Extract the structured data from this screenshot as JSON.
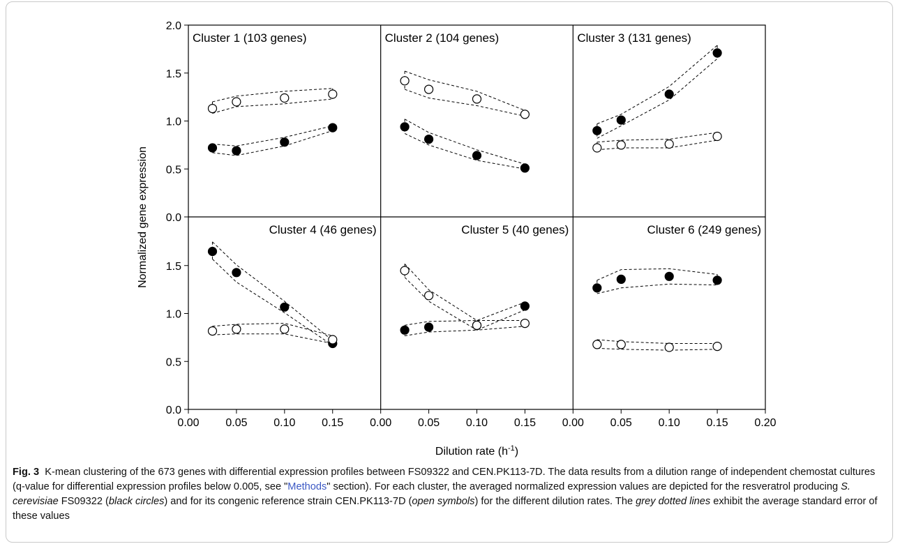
{
  "chart_data": {
    "type": "scatter",
    "ylabel": "Normalized gene expression",
    "xlabel_main": "Dilution rate (h",
    "xlabel_sup": "-1",
    "xlabel_end": ")",
    "xlim": [
      0,
      0.2
    ],
    "ylim": [
      0,
      2.0
    ],
    "x_ticks": [
      "0.00",
      "0.05",
      "0.10",
      "0.15",
      "0.20"
    ],
    "y_ticks_top": [
      "0.0",
      "0.5",
      "1.0",
      "1.5",
      "2.0"
    ],
    "y_ticks_bottom": [
      "0.0",
      "0.5",
      "1.0",
      "1.5"
    ],
    "x": [
      0.025,
      0.05,
      0.1,
      0.15
    ],
    "legend": [
      {
        "name": "FS09322",
        "marker": "black circles"
      },
      {
        "name": "CEN.PK113-7D",
        "marker": "open symbols"
      }
    ],
    "panels": [
      {
        "title": "Cluster 1 (103 genes)",
        "title_pos": "left",
        "series": [
          {
            "name": "FS09322",
            "filled": true,
            "values": [
              0.72,
              0.69,
              0.78,
              0.93
            ],
            "upper": [
              0.76,
              0.74,
              0.83,
              0.95
            ],
            "lower": [
              0.67,
              0.64,
              0.74,
              0.9
            ]
          },
          {
            "name": "CEN.PK113-7D",
            "filled": false,
            "values": [
              1.13,
              1.2,
              1.24,
              1.28
            ],
            "upper": [
              1.2,
              1.26,
              1.31,
              1.34
            ],
            "lower": [
              1.08,
              1.15,
              1.18,
              1.23
            ]
          }
        ]
      },
      {
        "title": "Cluster 2 (104 genes)",
        "title_pos": "left",
        "series": [
          {
            "name": "FS09322",
            "filled": true,
            "values": [
              0.94,
              0.81,
              0.64,
              0.51
            ],
            "upper": [
              1.02,
              0.88,
              0.7,
              0.55
            ],
            "lower": [
              0.87,
              0.75,
              0.59,
              0.5
            ]
          },
          {
            "name": "CEN.PK113-7D",
            "filled": false,
            "values": [
              1.42,
              1.33,
              1.23,
              1.07
            ],
            "upper": [
              1.52,
              1.43,
              1.31,
              1.11
            ],
            "lower": [
              1.33,
              1.24,
              1.16,
              1.05
            ]
          }
        ]
      },
      {
        "title": "Cluster 3 (131 genes)",
        "title_pos": "left",
        "series": [
          {
            "name": "FS09322",
            "filled": true,
            "values": [
              0.9,
              1.01,
              1.28,
              1.71
            ],
            "upper": [
              0.97,
              1.07,
              1.36,
              1.79
            ],
            "lower": [
              0.82,
              0.95,
              1.22,
              1.65
            ]
          },
          {
            "name": "CEN.PK113-7D",
            "filled": false,
            "values": [
              0.72,
              0.75,
              0.76,
              0.84
            ],
            "upper": [
              0.78,
              0.8,
              0.81,
              0.88
            ],
            "lower": [
              0.7,
              0.72,
              0.72,
              0.8
            ]
          }
        ]
      },
      {
        "title": "Cluster 4 (46 genes)",
        "title_pos": "right",
        "series": [
          {
            "name": "FS09322",
            "filled": true,
            "values": [
              1.64,
              1.42,
              1.06,
              0.68
            ],
            "upper": [
              1.74,
              1.5,
              1.12,
              0.71
            ],
            "lower": [
              1.56,
              1.32,
              1.0,
              0.66
            ]
          },
          {
            "name": "CEN.PK113-7D",
            "filled": false,
            "values": [
              0.81,
              0.83,
              0.83,
              0.72
            ],
            "upper": [
              0.86,
              0.88,
              0.89,
              0.76
            ],
            "lower": [
              0.77,
              0.78,
              0.78,
              0.68
            ]
          }
        ]
      },
      {
        "title": "Cluster 5 (40 genes)",
        "title_pos": "right",
        "series": [
          {
            "name": "FS09322",
            "filled": true,
            "values": [
              0.82,
              0.85,
              0.87,
              1.07
            ],
            "upper": [
              0.87,
              0.91,
              0.92,
              1.11
            ],
            "lower": [
              0.76,
              0.8,
              0.82,
              1.03
            ]
          },
          {
            "name": "CEN.PK113-7D",
            "filled": false,
            "values": [
              1.44,
              1.18,
              0.87,
              0.89
            ],
            "upper": [
              1.51,
              1.24,
              0.92,
              0.92
            ],
            "lower": [
              1.37,
              1.12,
              0.82,
              0.86
            ]
          }
        ]
      },
      {
        "title": "Cluster 6 (249 genes)",
        "title_pos": "right",
        "series": [
          {
            "name": "FS09322",
            "filled": true,
            "values": [
              1.26,
              1.35,
              1.38,
              1.34
            ],
            "upper": [
              1.34,
              1.45,
              1.46,
              1.4
            ],
            "lower": [
              1.2,
              1.26,
              1.3,
              1.29
            ]
          },
          {
            "name": "CEN.PK113-7D",
            "filled": false,
            "values": [
              0.67,
              0.67,
              0.64,
              0.65
            ],
            "upper": [
              0.72,
              0.7,
              0.68,
              0.68
            ],
            "lower": [
              0.63,
              0.62,
              0.61,
              0.62
            ]
          }
        ]
      }
    ]
  },
  "caption": {
    "label": "Fig. 3",
    "part1": "K-mean clustering of the 673 genes with differential expression profiles between FS09322 and CEN.PK113-7D. The data results from a dilution range of independent chemostat cultures (q-value for differential expression profiles below 0.005, see \"",
    "link": "Methods",
    "part2": "\" section). For each cluster, the averaged normalized expression values are depicted for the resveratrol producing ",
    "species": "S. cerevisiae",
    "part3": " FS09322 (",
    "black_circles": "black circles",
    "part4": ") and for its congenic reference strain CEN.PK113-7D (",
    "open_symbols": "open symbols",
    "part5": ") for the different dilution rates. The ",
    "grey_dotted": "grey dotted lines",
    "part6": " exhibit the average standard error of these values"
  },
  "colors": {
    "ink": "#000000",
    "frame": "#c8c8c8",
    "link": "#3b58c4"
  }
}
